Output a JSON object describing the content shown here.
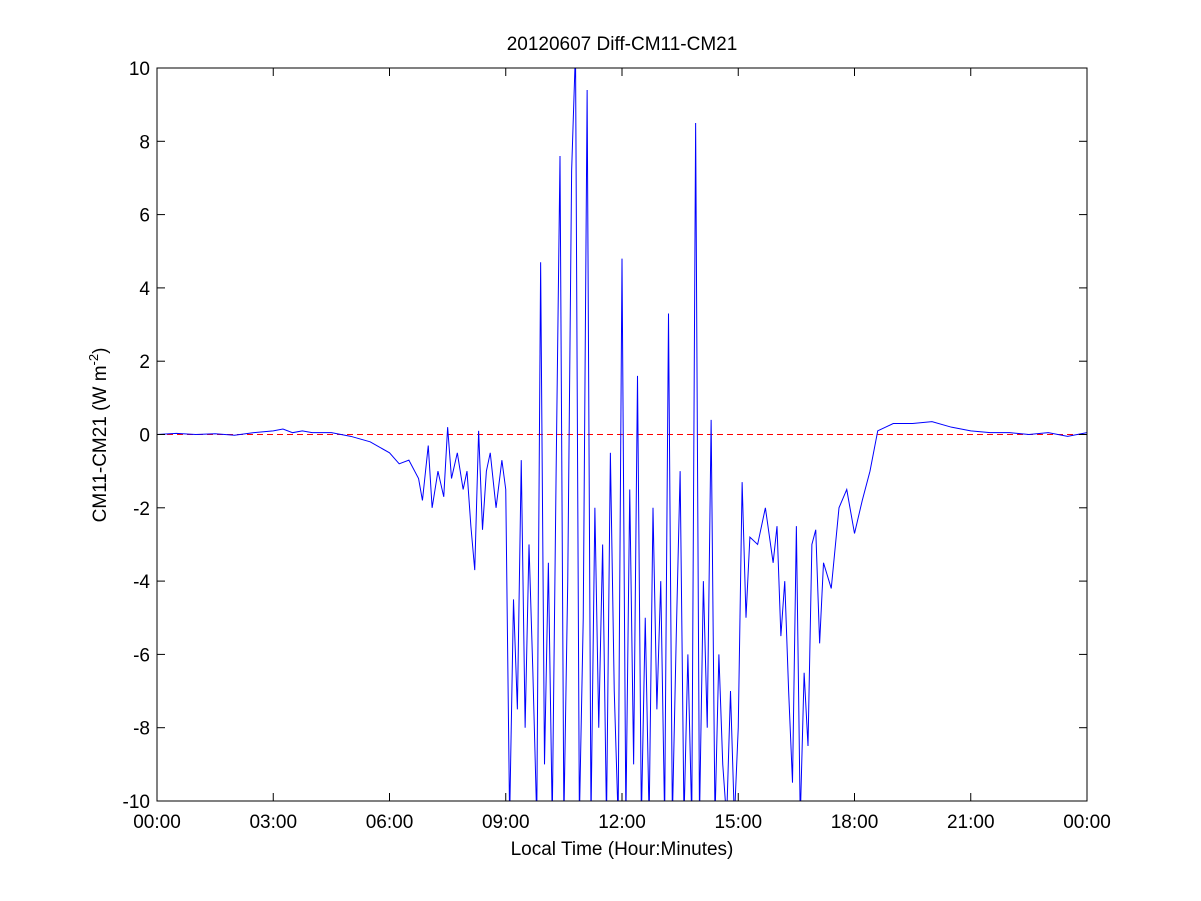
{
  "chart_data": {
    "type": "line",
    "title": "20120607 Diff-CM11-CM21",
    "xlabel": "Local Time (Hour:Minutes)",
    "ylabel": {
      "text": "CM11-CM21 (W m",
      "superscript": "-2",
      "suffix": ")"
    },
    "x": [
      0,
      0.5,
      1,
      1.5,
      2,
      2.5,
      3,
      3.25,
      3.5,
      3.75,
      4,
      4.5,
      5,
      5.5,
      6,
      6.25,
      6.5,
      6.75,
      6.85,
      7,
      7.1,
      7.25,
      7.4,
      7.5,
      7.6,
      7.75,
      7.9,
      8,
      8.1,
      8.2,
      8.3,
      8.4,
      8.5,
      8.6,
      8.75,
      8.9,
      9,
      9.1,
      9.2,
      9.3,
      9.4,
      9.5,
      9.6,
      9.7,
      9.8,
      9.9,
      10,
      10.1,
      10.2,
      10.3,
      10.4,
      10.5,
      10.6,
      10.7,
      10.8,
      10.9,
      11,
      11.1,
      11.2,
      11.3,
      11.4,
      11.5,
      11.6,
      11.7,
      11.8,
      11.9,
      12,
      12.1,
      12.2,
      12.3,
      12.4,
      12.5,
      12.6,
      12.7,
      12.8,
      12.9,
      13,
      13.1,
      13.2,
      13.3,
      13.4,
      13.5,
      13.6,
      13.7,
      13.8,
      13.9,
      14,
      14.1,
      14.2,
      14.3,
      14.4,
      14.5,
      14.6,
      14.7,
      14.8,
      14.9,
      15,
      15.1,
      15.2,
      15.3,
      15.5,
      15.7,
      15.9,
      16,
      16.1,
      16.2,
      16.3,
      16.4,
      16.5,
      16.6,
      16.7,
      16.8,
      16.9,
      17,
      17.1,
      17.2,
      17.4,
      17.6,
      17.8,
      18,
      18.2,
      18.4,
      18.6,
      18.8,
      19,
      19.5,
      20,
      20.5,
      21,
      21.5,
      22,
      22.5,
      23,
      23.5,
      24
    ],
    "values": [
      0,
      0.03,
      0,
      0.02,
      -0.02,
      0.05,
      0.1,
      0.15,
      0.05,
      0.1,
      0.05,
      0.05,
      -0.05,
      -0.2,
      -0.5,
      -0.8,
      -0.7,
      -1.2,
      -1.8,
      -0.3,
      -2.0,
      -1.0,
      -1.7,
      0.2,
      -1.2,
      -0.5,
      -1.5,
      -1.0,
      -2.5,
      -3.7,
      0.1,
      -2.6,
      -1.0,
      -0.5,
      -2.0,
      -0.7,
      -1.5,
      -10.5,
      -4.5,
      -7.5,
      -0.7,
      -8.0,
      -3.0,
      -6.5,
      -10.5,
      4.7,
      -9.0,
      -3.5,
      -10.5,
      -1.0,
      7.6,
      -10.5,
      -4.0,
      7.2,
      10.5,
      -10.5,
      -5.0,
      9.4,
      -10.5,
      -2.0,
      -8.0,
      -3.0,
      -10.5,
      -0.5,
      -7.0,
      -10.5,
      4.8,
      -10.5,
      -1.5,
      -9.0,
      1.6,
      -10.5,
      -5.0,
      -10.5,
      -2.0,
      -7.5,
      -4.0,
      -10.5,
      3.3,
      -10.5,
      -5.5,
      -1.0,
      -10.5,
      -6.0,
      -10.5,
      8.5,
      -10.5,
      -4.0,
      -8.0,
      0.4,
      -10.5,
      -6.0,
      -9.0,
      -10.5,
      -7.0,
      -10.5,
      -8.0,
      -1.3,
      -5.0,
      -2.8,
      -3.0,
      -2.0,
      -3.5,
      -2.5,
      -5.5,
      -4.0,
      -7.0,
      -9.5,
      -2.5,
      -10.5,
      -6.5,
      -8.5,
      -3.0,
      -2.6,
      -5.7,
      -3.5,
      -4.2,
      -2.0,
      -1.5,
      -2.7,
      -1.8,
      -1.0,
      0.1,
      0.2,
      0.3,
      0.3,
      0.35,
      0.2,
      0.1,
      0.05,
      0.05,
      0.0,
      0.05,
      -0.05,
      0.05
    ],
    "color": "#0000ff",
    "reference_line": {
      "y": 0,
      "color": "#ff0000",
      "style": "dashed"
    },
    "xlim": [
      0,
      24
    ],
    "xticks": [
      {
        "value": 0,
        "label": "00:00"
      },
      {
        "value": 3,
        "label": "03:00"
      },
      {
        "value": 6,
        "label": "06:00"
      },
      {
        "value": 9,
        "label": "09:00"
      },
      {
        "value": 12,
        "label": "12:00"
      },
      {
        "value": 15,
        "label": "15:00"
      },
      {
        "value": 18,
        "label": "18:00"
      },
      {
        "value": 21,
        "label": "21:00"
      },
      {
        "value": 24,
        "label": "00:00"
      }
    ],
    "ylim": [
      -10,
      10
    ],
    "yticks": [
      -10,
      -8,
      -6,
      -4,
      -2,
      0,
      2,
      4,
      6,
      8,
      10
    ],
    "grid": false
  }
}
